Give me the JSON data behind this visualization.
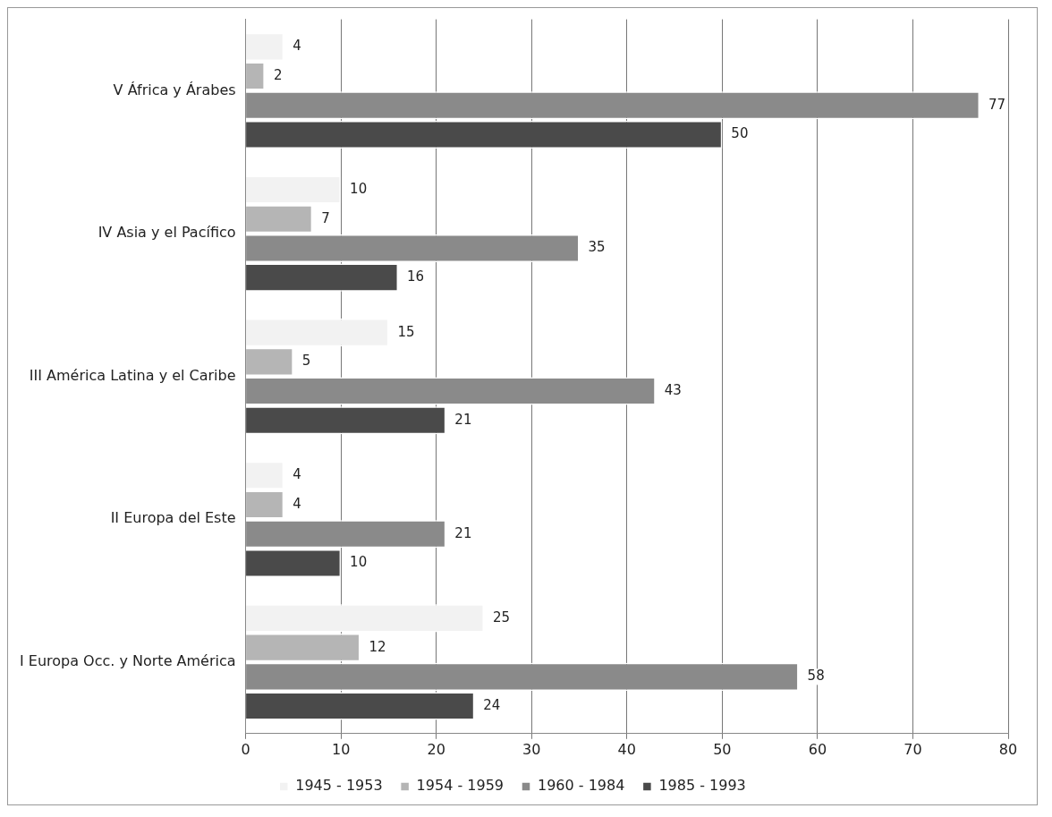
{
  "chart_data": {
    "type": "bar",
    "orientation": "horizontal",
    "categories": [
      "V África y Árabes",
      "IV Asia y el Pacífico",
      "III América Latina y el Caribe",
      "II Europa del Este",
      "I Europa Occ. y Norte América"
    ],
    "series": [
      {
        "name": "1945 - 1953",
        "color": "#f2f2f2",
        "values": [
          4,
          10,
          15,
          4,
          25
        ]
      },
      {
        "name": "1954 - 1959",
        "color": "#b5b5b5",
        "values": [
          2,
          7,
          5,
          4,
          12
        ]
      },
      {
        "name": "1960 - 1984",
        "color": "#8a8a8a",
        "values": [
          77,
          35,
          43,
          21,
          58
        ]
      },
      {
        "name": "1985 - 1993",
        "color": "#4a4a4a",
        "values": [
          50,
          16,
          21,
          10,
          24
        ]
      }
    ],
    "xlim": [
      0,
      80
    ],
    "xticks": [
      0,
      10,
      20,
      30,
      40,
      50,
      60,
      70,
      80
    ],
    "grid": "x",
    "legend": "bottom",
    "data_labels": true
  }
}
